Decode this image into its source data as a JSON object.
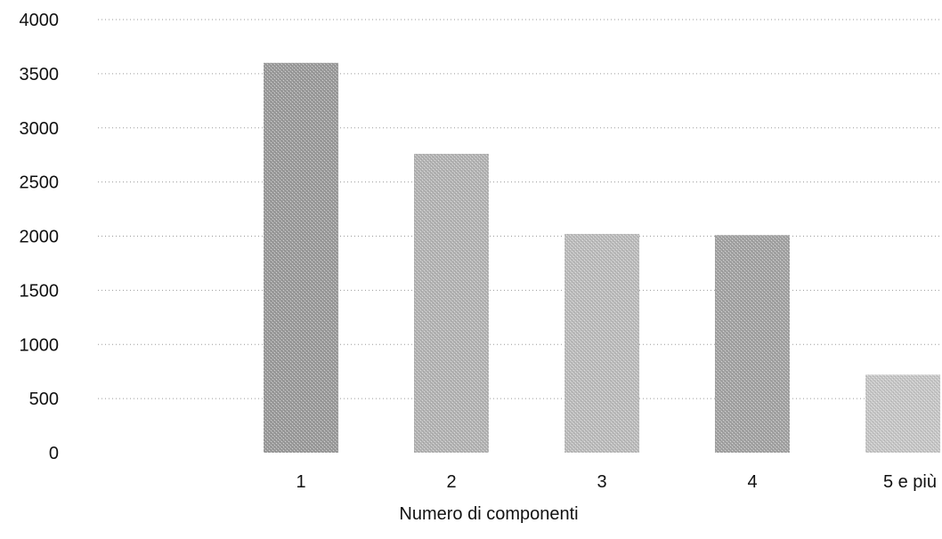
{
  "chart_data": {
    "type": "bar",
    "categories": [
      "1",
      "2",
      "3",
      "4",
      "5 e più"
    ],
    "values": [
      3600,
      2760,
      2020,
      2010,
      720
    ],
    "xlabel": "Numero di componenti",
    "ylabel": "",
    "ylim": [
      0,
      4000
    ],
    "yticks": [
      0,
      500,
      1000,
      1500,
      2000,
      2500,
      3000,
      3500,
      4000
    ],
    "grid": true,
    "legend": "none",
    "colors": {
      "bars": [
        "#9c9c9c",
        "#b4b4b4",
        "#bcbcbc",
        "#a4a4a4",
        "#c6c6c6"
      ]
    }
  }
}
